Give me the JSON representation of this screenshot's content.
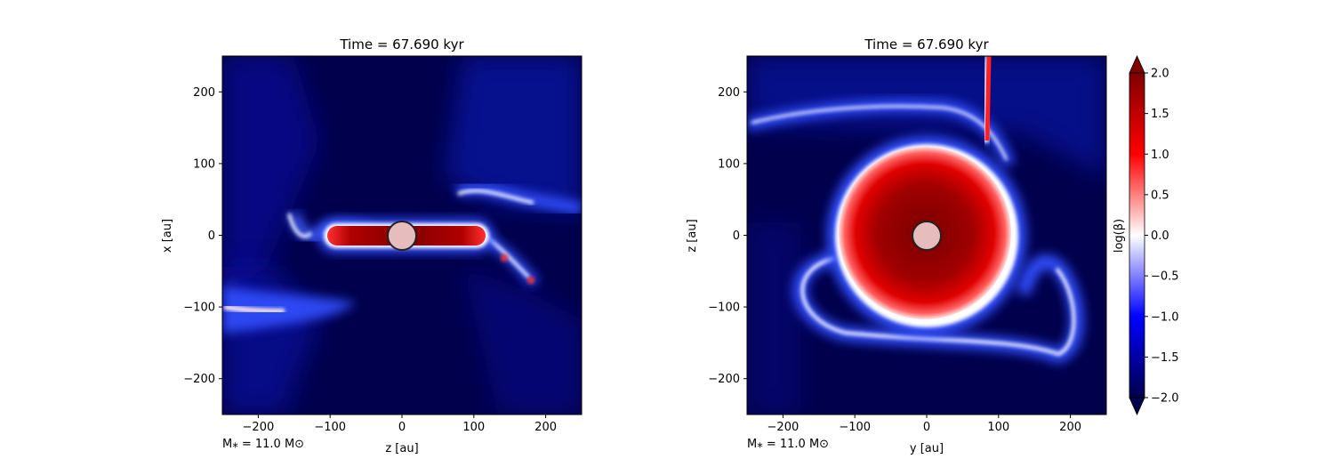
{
  "chart_data": [
    {
      "type": "heatmap",
      "title": "Time = 67.690 kyr",
      "xlabel": "z [au]",
      "ylabel": "x [au]",
      "xlim": [
        -250,
        250
      ],
      "ylim": [
        -250,
        250
      ],
      "xticks": [
        -200,
        -100,
        0,
        100,
        200
      ],
      "yticks": [
        -200,
        -100,
        0,
        100,
        200
      ],
      "xtick_labels": [
        "−200",
        "−100",
        "0",
        "100",
        "200"
      ],
      "ytick_labels": [
        "−200",
        "−100",
        "0",
        "100",
        "200"
      ],
      "annotation": "M⁎ = 11.0 M⊙",
      "star_marker": {
        "x": 0,
        "y": 0
      },
      "grid": false
    },
    {
      "type": "heatmap",
      "title": "Time = 67.690 kyr",
      "xlabel": "y [au]",
      "ylabel": "z [au]",
      "xlim": [
        -250,
        250
      ],
      "ylim": [
        -250,
        250
      ],
      "xticks": [
        -200,
        -100,
        0,
        100,
        200
      ],
      "yticks": [
        -200,
        -100,
        0,
        100,
        200
      ],
      "xtick_labels": [
        "−200",
        "−100",
        "0",
        "100",
        "200"
      ],
      "ytick_labels": [
        "−200",
        "−100",
        "0",
        "100",
        "200"
      ],
      "annotation": "M⁎ = 11.0 M⊙",
      "star_marker": {
        "x": 0,
        "y": 0
      },
      "grid": false
    }
  ],
  "colorbar": {
    "label": "log(β)",
    "range": [
      -2.0,
      2.0
    ],
    "ticks": [
      -2.0,
      -1.5,
      -1.0,
      -0.5,
      0.0,
      0.5,
      1.0,
      1.5,
      2.0
    ],
    "tick_labels": [
      "−2.0",
      "−1.5",
      "−1.0",
      "−0.5",
      "0.0",
      "0.5",
      "1.0",
      "1.5",
      "2.0"
    ],
    "colormap": "seismic",
    "colors": {
      "low": "#00004c",
      "mid_low": "#0000ff",
      "center": "#ffffff",
      "mid_high": "#ff0000",
      "high": "#800000"
    }
  }
}
